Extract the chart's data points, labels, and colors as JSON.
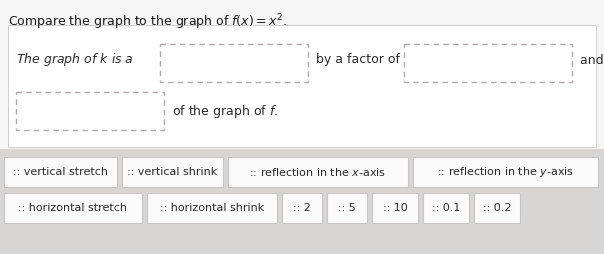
{
  "title": "Compare the graph to the graph of $f(x) = x^2$.",
  "line1_left": "The graph of $k$ is a",
  "line1_mid": "by a factor of",
  "line1_right": "and a",
  "line2_end": "of the graph of $f$.",
  "row1_buttons": [
    ":: vertical stretch",
    ":: vertical shrink",
    ":: reflection in the $x$-axis",
    ":: reflection in the $y$-axis"
  ],
  "row2_buttons": [
    ":: horizontal stretch",
    ":: horizontal shrink",
    ":: 2",
    ":: 5",
    ":: 10",
    ":: 0.1",
    ":: 0.2"
  ],
  "bg_color": "#f5f5f5",
  "panel_color": "#f0eeee",
  "bottom_color": "#d8d5d5",
  "title_color": "#1a1a1a",
  "text_color": "#2a2a2a",
  "box_dash_color": "#b0a8a8",
  "button_bg": "#fafafa",
  "button_border": "#c8c4c4"
}
